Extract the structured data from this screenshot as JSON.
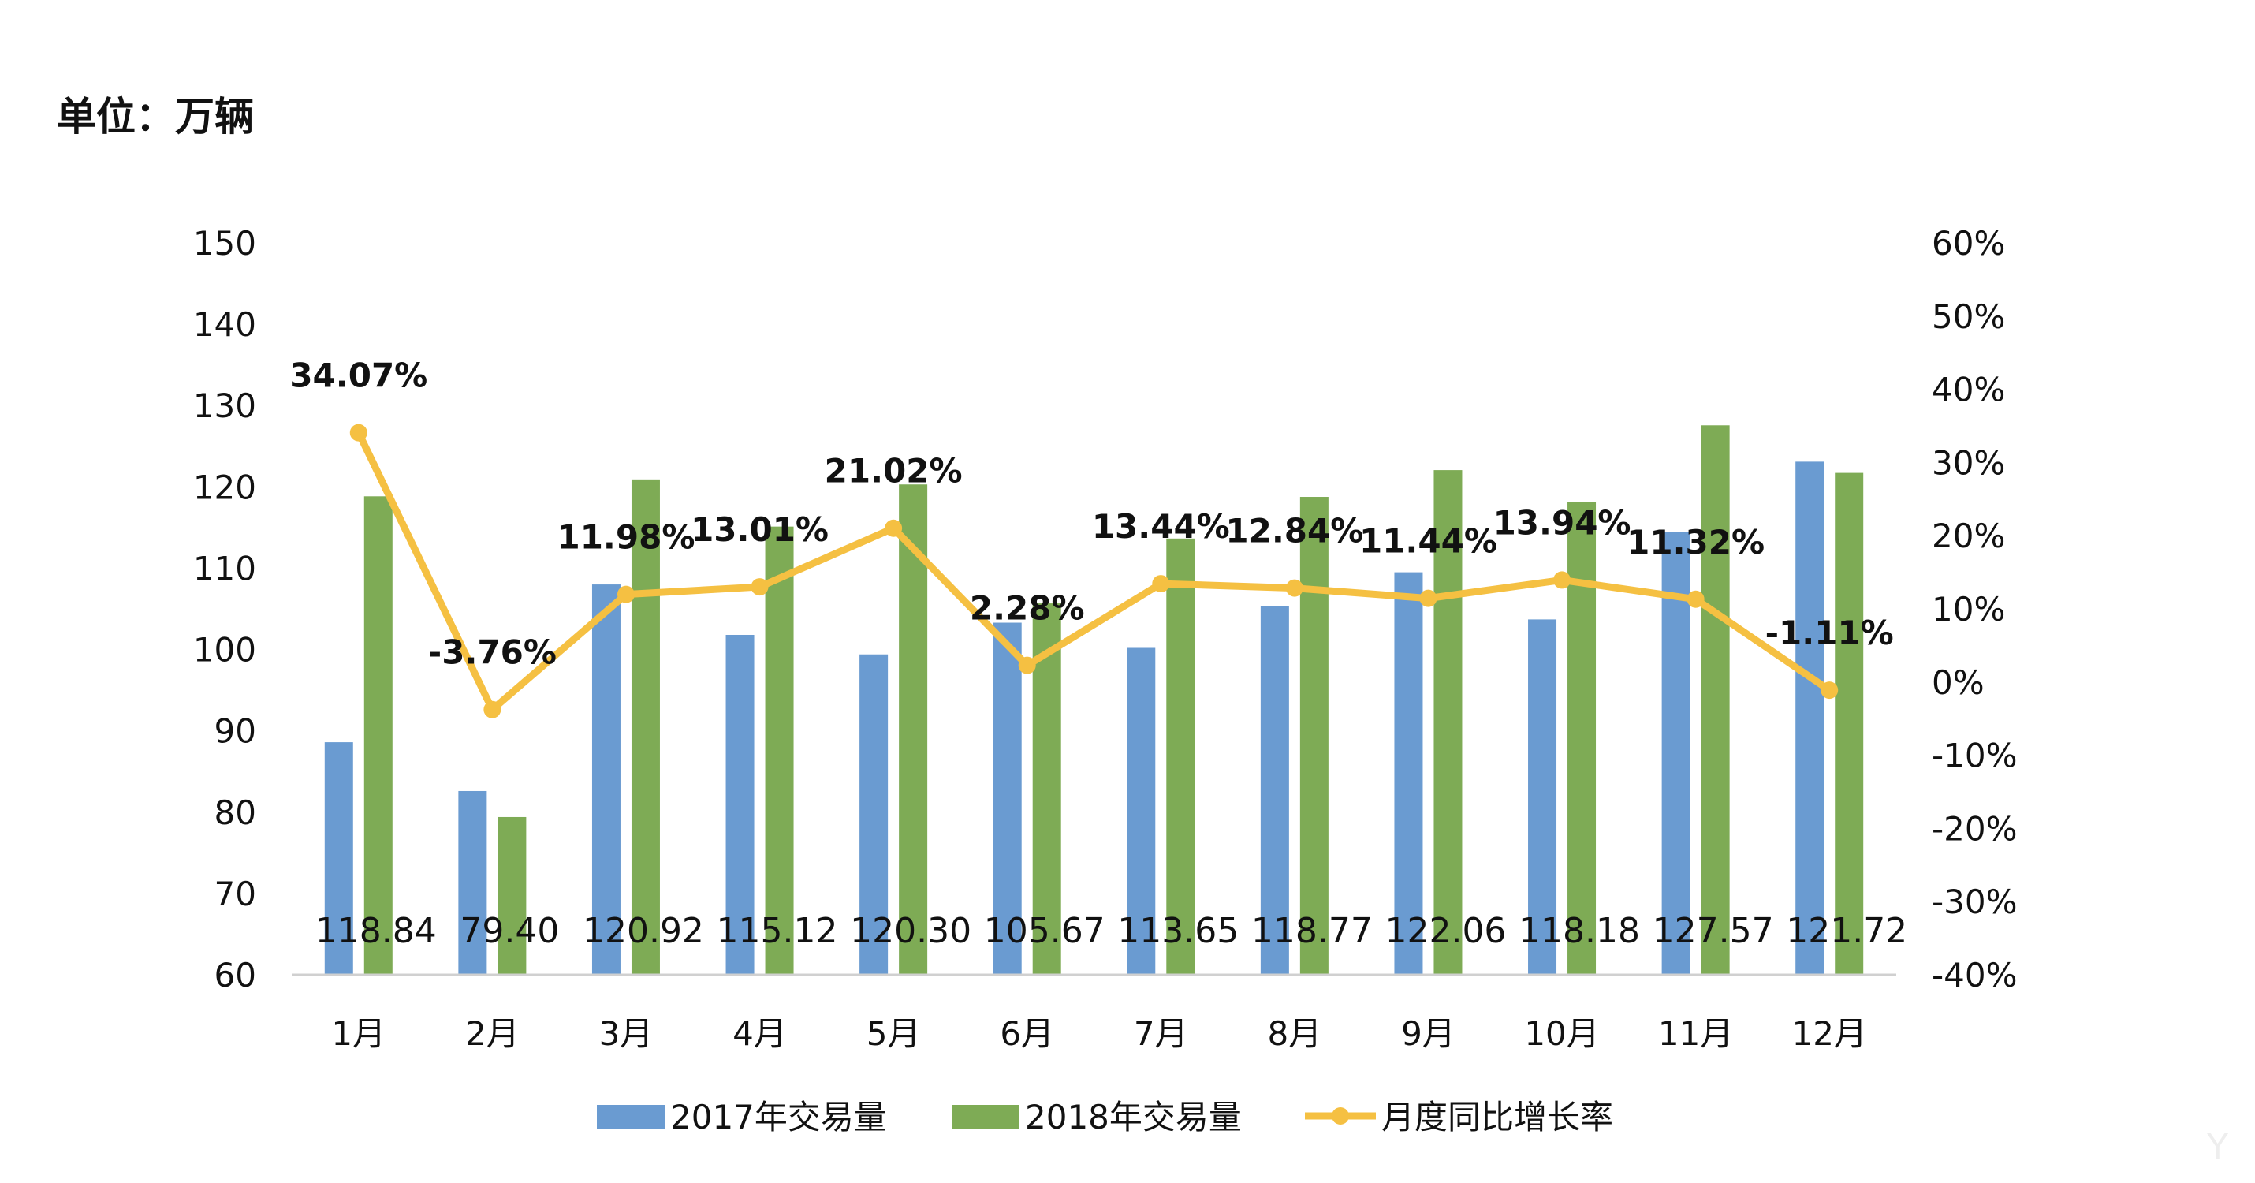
{
  "chart_data": {
    "type": "bar",
    "unit_label": "单位：万辆",
    "categories": [
      "1月",
      "2月",
      "3月",
      "4月",
      "5月",
      "6月",
      "7月",
      "8月",
      "9月",
      "10月",
      "11月",
      "12月"
    ],
    "series": [
      {
        "name": "2017年交易量",
        "type": "bar",
        "axis": "left",
        "color": "#6a9bd1",
        "values": [
          88.6,
          82.6,
          108.0,
          101.8,
          99.4,
          103.3,
          100.2,
          105.3,
          109.5,
          103.7,
          114.5,
          123.1
        ]
      },
      {
        "name": "2018年交易量",
        "type": "bar",
        "axis": "left",
        "color": "#7eab55",
        "values": [
          118.84,
          79.4,
          120.92,
          115.12,
          120.3,
          105.67,
          113.65,
          118.77,
          122.06,
          118.18,
          127.57,
          121.72
        ],
        "data_labels": [
          "118.84",
          "79.40",
          "120.92",
          "115.12",
          "120.30",
          "105.67",
          "113.65",
          "118.77",
          "122.06",
          "118.18",
          "127.57",
          "121.72"
        ]
      },
      {
        "name": "月度同比增长率",
        "type": "line",
        "axis": "right",
        "color": "#f5c042",
        "values": [
          34.07,
          -3.76,
          11.98,
          13.01,
          21.02,
          2.28,
          13.44,
          12.84,
          11.44,
          13.94,
          11.32,
          -1.11
        ],
        "data_labels": [
          "34.07%",
          "-3.76%",
          "11.98%",
          "13.01%",
          "21.02%",
          "2.28%",
          "13.44%",
          "12.84%",
          "11.44%",
          "13.94%",
          "11.32%",
          "-1.11%"
        ]
      }
    ],
    "y_left": {
      "ylim": [
        60,
        150
      ],
      "ticks": [
        "150",
        "140",
        "130",
        "120",
        "110",
        "100",
        "90",
        "80",
        "70",
        "60"
      ]
    },
    "y_right": {
      "ylim": [
        -40,
        60
      ],
      "ticks": [
        "60%",
        "50%",
        "40%",
        "30%",
        "20%",
        "10%",
        "0%",
        "-10%",
        "-20%",
        "-30%",
        "-40%"
      ]
    },
    "legend_position": "bottom",
    "grid": false
  },
  "watermark": "Y"
}
